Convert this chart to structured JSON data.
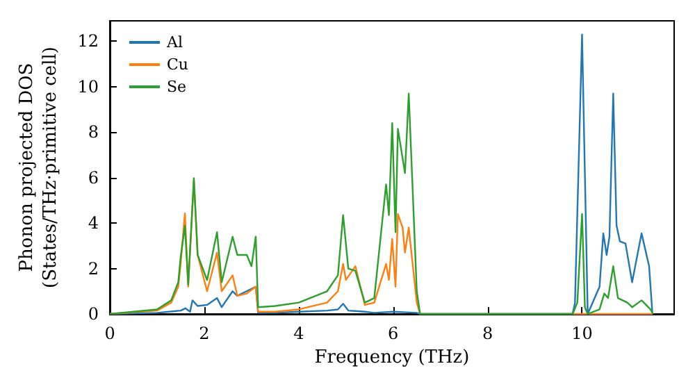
{
  "chart_data": {
    "type": "line",
    "xlabel": "Frequency (THz)",
    "ylabel": "Phonon projected DOS\n(States/THz·primitive cell)",
    "xlim": [
      0,
      11.95
    ],
    "ylim": [
      0,
      12.9
    ],
    "xticks": [
      0,
      2,
      4,
      6,
      8,
      10
    ],
    "yticks": [
      0,
      2,
      4,
      6,
      8,
      10,
      12
    ],
    "grid": false,
    "legend": "top left",
    "marker": "none",
    "line_style": "solid",
    "series": [
      {
        "name": "Al",
        "color": "#1f77b4",
        "x": [
          0,
          1.0,
          1.5,
          1.6,
          1.7,
          1.75,
          1.86,
          2.06,
          2.27,
          2.37,
          2.6,
          2.7,
          3.09,
          3.14,
          3.5,
          4.0,
          4.6,
          4.83,
          4.94,
          5.05,
          5.4,
          5.6,
          6.0,
          6.5,
          6.57,
          9.8,
          9.85,
          10.0,
          10.12,
          10.37,
          10.45,
          10.52,
          10.58,
          10.66,
          10.73,
          10.8,
          10.92,
          11.06,
          11.26,
          11.42,
          11.49
        ],
        "values": [
          0,
          0.05,
          0.15,
          0.25,
          0.1,
          0.6,
          0.35,
          0.4,
          0.7,
          0.3,
          1.0,
          0.8,
          1.2,
          0.05,
          0.05,
          0.1,
          0.15,
          0.2,
          0.45,
          0.15,
          0.1,
          0.05,
          0.1,
          0.05,
          0,
          0,
          0.5,
          12.3,
          0,
          1.2,
          3.55,
          2.6,
          3.4,
          9.7,
          3.9,
          3.2,
          3.1,
          1.4,
          3.55,
          2.1,
          0
        ]
      },
      {
        "name": "Cu",
        "color": "#ff7f0e",
        "x": [
          0,
          1.0,
          1.3,
          1.45,
          1.5,
          1.59,
          1.66,
          1.78,
          1.86,
          2.06,
          2.27,
          2.37,
          2.6,
          2.7,
          2.9,
          3.09,
          3.14,
          3.5,
          4.0,
          4.6,
          4.83,
          4.94,
          5.0,
          5.2,
          5.4,
          5.6,
          5.85,
          5.91,
          5.98,
          6.05,
          6.1,
          6.2,
          6.25,
          6.33,
          6.5,
          6.57,
          11.5
        ],
        "values": [
          0,
          0.15,
          0.5,
          1.2,
          2.2,
          4.43,
          1.2,
          5.9,
          2.6,
          1.0,
          2.7,
          1.0,
          1.7,
          0.8,
          0.9,
          1.2,
          0.1,
          0.1,
          0.2,
          0.5,
          1.0,
          2.2,
          1.5,
          2.1,
          0.4,
          0.5,
          2.2,
          1.5,
          3.3,
          1.2,
          4.4,
          3.8,
          2.7,
          3.8,
          0.5,
          0,
          0
        ]
      },
      {
        "name": "Se",
        "color": "#2ca02c",
        "x": [
          0,
          1.0,
          1.3,
          1.45,
          1.5,
          1.59,
          1.66,
          1.78,
          1.86,
          2.06,
          2.27,
          2.37,
          2.6,
          2.7,
          2.9,
          3.0,
          3.09,
          3.14,
          3.5,
          4.0,
          4.6,
          4.83,
          4.94,
          5.05,
          5.2,
          5.4,
          5.6,
          5.85,
          5.91,
          5.98,
          6.05,
          6.1,
          6.25,
          6.33,
          6.5,
          6.57,
          9.8,
          9.9,
          10.0,
          10.06,
          10.12,
          10.37,
          10.47,
          10.55,
          10.66,
          10.76,
          10.96,
          11.06,
          11.26,
          11.45,
          11.5
        ],
        "values": [
          0,
          0.2,
          0.6,
          1.4,
          2.5,
          3.88,
          1.29,
          5.98,
          2.6,
          1.49,
          3.6,
          1.4,
          3.4,
          2.6,
          2.6,
          2.1,
          3.4,
          0.3,
          0.35,
          0.5,
          1.0,
          1.7,
          4.35,
          2.0,
          1.9,
          0.5,
          0.7,
          5.7,
          4.35,
          8.4,
          3.6,
          8.15,
          6.2,
          9.7,
          1.0,
          0,
          0,
          0.5,
          4.4,
          0.3,
          0,
          0.2,
          0.9,
          0.7,
          2.1,
          0.7,
          0.5,
          0.3,
          0.6,
          0.2,
          0
        ]
      }
    ]
  }
}
